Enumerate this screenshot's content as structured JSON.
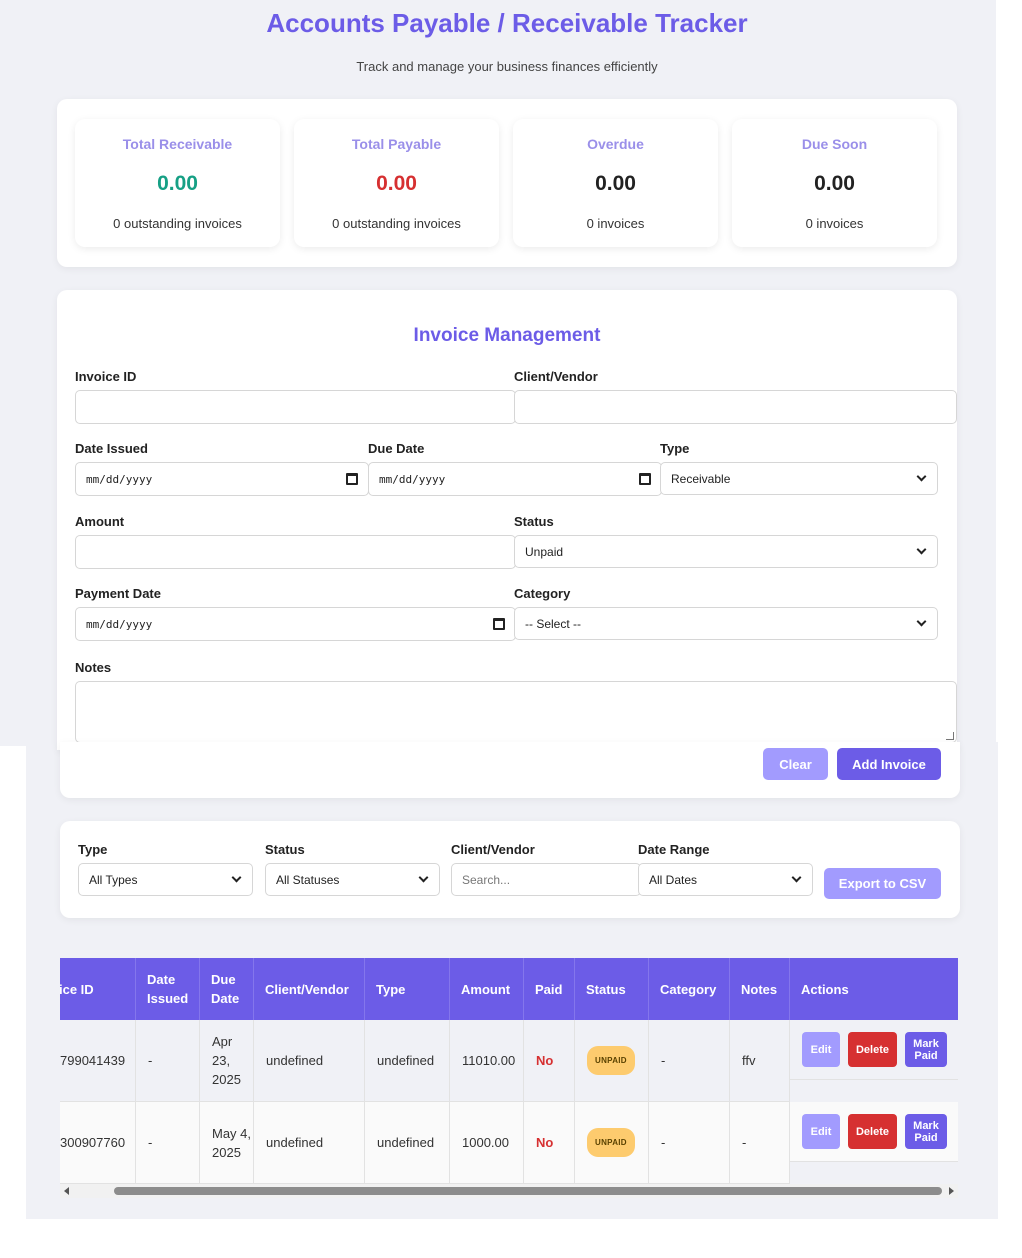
{
  "header": {
    "title": "Accounts Payable / Receivable Tracker",
    "subtitle": "Track and manage your business finances efficiently"
  },
  "summary": [
    {
      "label": "Total Receivable",
      "value": "0.00",
      "sub": "0 outstanding invoices",
      "color": "#16a085"
    },
    {
      "label": "Total Payable",
      "value": "0.00",
      "sub": "0 outstanding invoices",
      "color": "#d63031"
    },
    {
      "label": "Overdue",
      "value": "0.00",
      "sub": "0 invoices",
      "color": "#222222"
    },
    {
      "label": "Due Soon",
      "value": "0.00",
      "sub": "0 invoices",
      "color": "#222222"
    }
  ],
  "form": {
    "title": "Invoice Management",
    "invoice_id_label": "Invoice ID",
    "client_label": "Client/Vendor",
    "date_issued_label": "Date Issued",
    "date_issued_value": "mm/dd/yyyy",
    "due_date_label": "Due Date",
    "due_date_value": "mm/dd/yyyy",
    "type_label": "Type",
    "type_value": "Receivable",
    "amount_label": "Amount",
    "status_label": "Status",
    "status_value": "Unpaid",
    "payment_date_label": "Payment Date",
    "payment_date_value": "mm/dd/yyyy",
    "category_label": "Category",
    "category_value": "-- Select --",
    "notes_label": "Notes",
    "clear_button": "Clear",
    "add_button": "Add Invoice"
  },
  "filters": {
    "type_label": "Type",
    "type_value": "All Types",
    "status_label": "Status",
    "status_value": "All Statuses",
    "client_label": "Client/Vendor",
    "client_placeholder": "Search...",
    "date_label": "Date Range",
    "date_value": "All Dates",
    "export_button": "Export to CSV"
  },
  "table": {
    "headers": [
      "ice ID",
      "Date Issued",
      "Due Date",
      "Client/Vendor",
      "Type",
      "Amount",
      "Paid",
      "Status",
      "Category",
      "Notes",
      "Actions"
    ],
    "rows": [
      {
        "id": "799041439",
        "date_issued": "-",
        "due_date": "Apr 23, 2025",
        "client": "undefined",
        "type": "undefined",
        "amount": "11010.00",
        "paid": "No",
        "status": "UNPAID",
        "category": "-",
        "notes": "ffv"
      },
      {
        "id": "300907760",
        "date_issued": "-",
        "due_date": "May 4, 2025",
        "client": "undefined",
        "type": "undefined",
        "amount": "1000.00",
        "paid": "No",
        "status": "UNPAID",
        "category": "-",
        "notes": "-"
      }
    ],
    "actions": {
      "edit": "Edit",
      "delete": "Delete",
      "mark_paid": "Mark Paid"
    }
  }
}
